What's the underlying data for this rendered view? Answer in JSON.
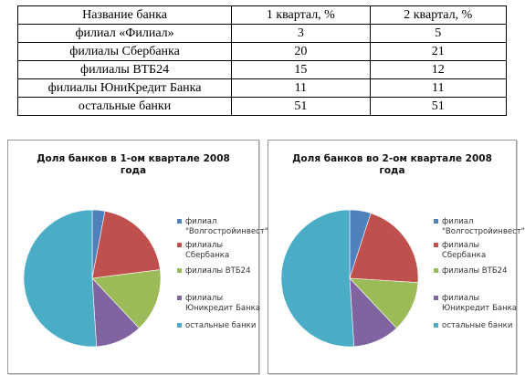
{
  "table": {
    "headers": [
      "Название банка",
      "1 квартал, %",
      "2 квартал, %"
    ],
    "rows": [
      [
        "филиал «Филиал»",
        "3",
        "5"
      ],
      [
        "филиалы Сбербанка",
        "20",
        "21"
      ],
      [
        "филиалы ВТБ24",
        "15",
        "12"
      ],
      [
        "филиалы ЮниКредит Банка",
        "11",
        "11"
      ],
      [
        "остальные банки",
        "51",
        "51"
      ]
    ]
  },
  "colors": {
    "filial": "#4f81bd",
    "sberbank": "#c0504d",
    "vtb24": "#9bbb59",
    "unicredit": "#8064a2",
    "other": "#4bacc6"
  },
  "chart_data": [
    {
      "type": "pie",
      "title_line1": "Доля банков в 1-ом квартале 2008",
      "title_line2": "года",
      "categories": [
        "филиал \"Волгостройинвест\"",
        "филиалы Сбербанка",
        "филиалы ВТБ24",
        "филиалы Юникредит Банка",
        "остальные банки"
      ],
      "values": [
        3,
        20,
        15,
        11,
        51
      ],
      "legend_position": "right"
    },
    {
      "type": "pie",
      "title_line1": "Доля банков во 2-ом квартале 2008",
      "title_line2": "года",
      "categories": [
        "филиал \"Волгостройинвест\"",
        "филиалы Сбербанка",
        "филиалы ВТБ24",
        "филиалы Юникредит Банка",
        "остальные банки"
      ],
      "values": [
        5,
        21,
        12,
        11,
        51
      ],
      "legend_position": "right"
    }
  ]
}
